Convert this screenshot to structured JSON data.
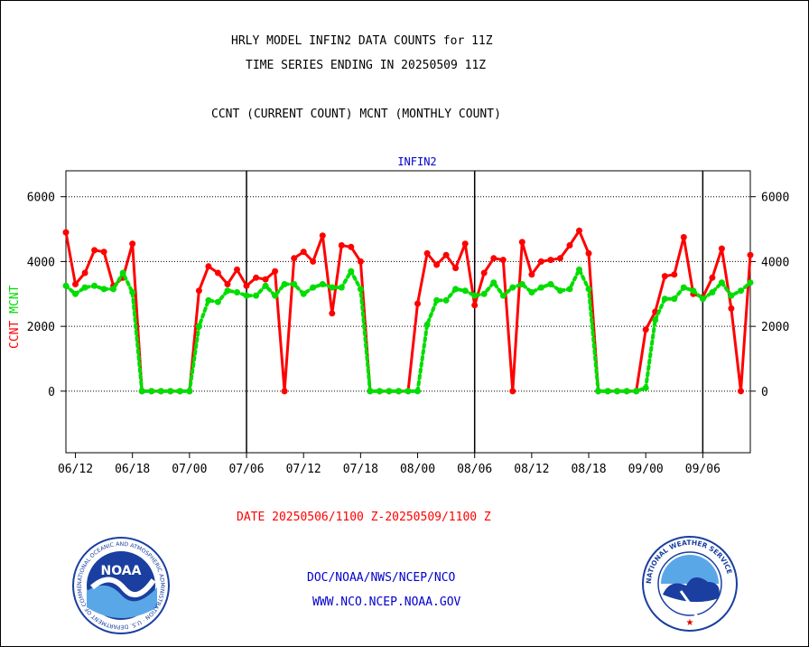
{
  "header": {
    "title_line1": "HRLY MODEL INFIN2 DATA COUNTS for 11Z",
    "title_line2": "TIME SERIES ENDING IN 20250509 11Z",
    "subtitle": "CCNT (CURRENT COUNT) MCNT (MONTHLY COUNT)"
  },
  "footer": {
    "date_range": "DATE 20250506/1100 Z-20250509/1100 Z",
    "link1": "DOC/NOAA/NWS/NCEP/NCO",
    "link2": "WWW.NCO.NCEP.NOAA.GOV"
  },
  "logos": {
    "left": {
      "text": "NOAA",
      "ring_text": "NATIONAL OCEANIC AND ATMOSPHERIC ADMINISTRATION · U.S. DEPARTMENT OF COMMERCE"
    },
    "right": {
      "ring_text": "NATIONAL WEATHER SERVICE"
    }
  },
  "colors": {
    "ccnt": "#ff0000",
    "mcnt": "#00dd00",
    "label_blue": "#0000cc",
    "axis": "#000000"
  },
  "chart_data": {
    "type": "line",
    "title": "INFIN2",
    "ylabel_parts": [
      {
        "text": "CCNT",
        "color": "#ff0000"
      },
      {
        "text": "MCNT",
        "color": "#00dd00"
      }
    ],
    "ylim": [
      -1900,
      6800
    ],
    "yticks": [
      0,
      2000,
      4000,
      6000
    ],
    "grid": true,
    "x_ticks": [
      "06/12",
      "06/18",
      "07/00",
      "07/06",
      "07/12",
      "07/18",
      "08/00",
      "08/06",
      "08/12",
      "08/18",
      "09/00",
      "09/06"
    ],
    "x_tick_hours": [
      1,
      7,
      13,
      19,
      25,
      31,
      37,
      43,
      49,
      55,
      61,
      67
    ],
    "day_boundaries_hours": [
      19,
      43,
      67
    ],
    "x_hour_range": [
      0,
      72
    ],
    "series": [
      {
        "name": "CCNT",
        "color": "#ff0000",
        "style": "solid",
        "hours": [
          0,
          1,
          2,
          3,
          4,
          5,
          6,
          7,
          8,
          9,
          10,
          11,
          12,
          13,
          14,
          15,
          16,
          17,
          18,
          19,
          20,
          21,
          22,
          23,
          24,
          25,
          26,
          27,
          28,
          29,
          30,
          31,
          32,
          33,
          34,
          35,
          36,
          37,
          38,
          39,
          40,
          41,
          42,
          43,
          44,
          45,
          46,
          47,
          48,
          49,
          50,
          51,
          52,
          53,
          54,
          55,
          56,
          57,
          58,
          59,
          60,
          61,
          62,
          63,
          64,
          65,
          66,
          67,
          68,
          69,
          70,
          71,
          72
        ],
        "values": [
          4900,
          3300,
          3650,
          4350,
          4300,
          3250,
          3500,
          4550,
          0,
          0,
          0,
          0,
          0,
          0,
          3100,
          3850,
          3650,
          3300,
          3750,
          3250,
          3500,
          3450,
          3700,
          0,
          4100,
          4300,
          4000,
          4800,
          2400,
          4500,
          4450,
          4000,
          0,
          0,
          0,
          0,
          0,
          2700,
          4250,
          3900,
          4200,
          3800,
          4550,
          2650,
          3650,
          4100,
          4050,
          0,
          4600,
          3600,
          4000,
          4050,
          4100,
          4500,
          4950,
          4250,
          0,
          0,
          0,
          0,
          0,
          1900,
          2450,
          3550,
          3600,
          4750,
          3000,
          2900,
          3500,
          4400,
          2550,
          0,
          4200
        ]
      },
      {
        "name": "MCNT",
        "color": "#00dd00",
        "style": "dotted",
        "hours": [
          0,
          1,
          2,
          3,
          4,
          5,
          6,
          7,
          8,
          9,
          10,
          11,
          12,
          13,
          14,
          15,
          16,
          17,
          18,
          19,
          20,
          21,
          22,
          23,
          24,
          25,
          26,
          27,
          28,
          29,
          30,
          31,
          32,
          33,
          34,
          35,
          36,
          37,
          38,
          39,
          40,
          41,
          42,
          43,
          44,
          45,
          46,
          47,
          48,
          49,
          50,
          51,
          52,
          53,
          54,
          55,
          56,
          57,
          58,
          59,
          60,
          61,
          62,
          63,
          64,
          65,
          66,
          67,
          68,
          69,
          70,
          71,
          72
        ],
        "values": [
          3250,
          3000,
          3200,
          3250,
          3150,
          3150,
          3650,
          3050,
          0,
          0,
          0,
          0,
          0,
          0,
          2000,
          2800,
          2750,
          3100,
          3050,
          2950,
          2950,
          3250,
          2950,
          3300,
          3300,
          3000,
          3200,
          3300,
          3200,
          3200,
          3700,
          3150,
          0,
          0,
          0,
          0,
          0,
          0,
          2050,
          2800,
          2800,
          3150,
          3100,
          2950,
          3000,
          3350,
          2950,
          3200,
          3300,
          3050,
          3200,
          3300,
          3100,
          3150,
          3750,
          3150,
          0,
          0,
          0,
          0,
          0,
          100,
          2200,
          2850,
          2850,
          3200,
          3100,
          2850,
          3050,
          3350,
          2950,
          3100,
          3350
        ]
      }
    ]
  }
}
